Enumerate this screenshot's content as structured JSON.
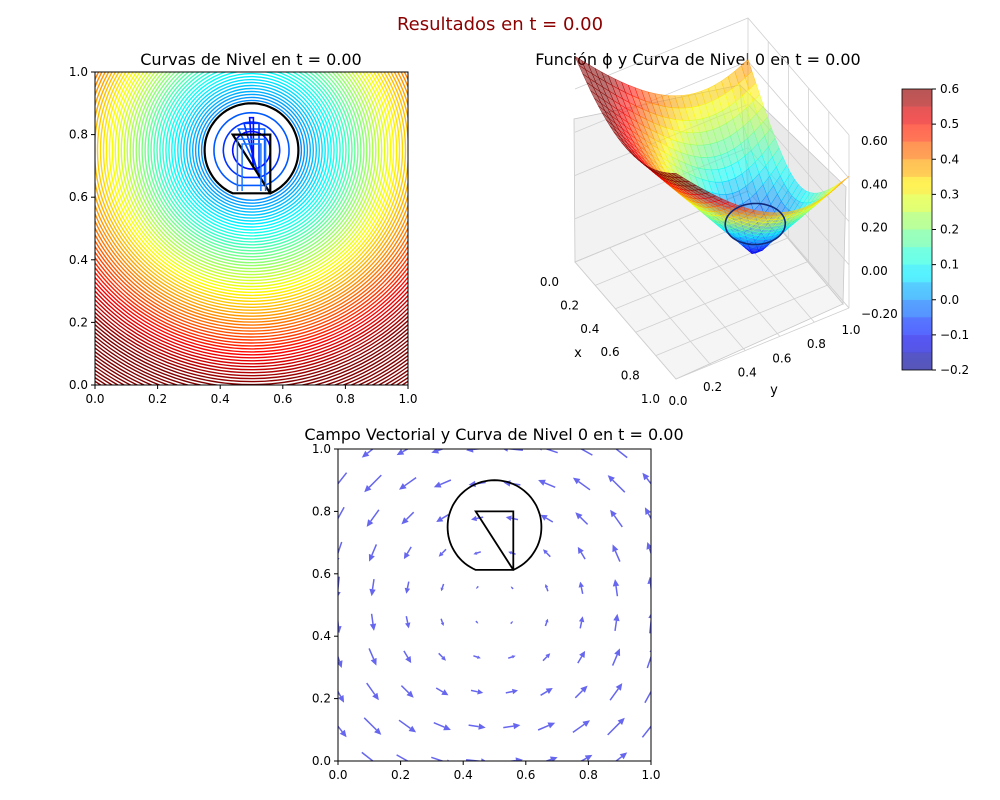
{
  "figure": {
    "suptitle": "Resultados en t = 0.00",
    "suptitle_color": "#8b0000"
  },
  "chart_data": [
    {
      "type": "contour",
      "title": "Curvas de Nivel en t = 0.00",
      "xlim": [
        0,
        1
      ],
      "ylim": [
        0,
        1
      ],
      "xticks": [
        "0.0",
        "0.2",
        "0.4",
        "0.6",
        "0.8",
        "1.0"
      ],
      "yticks": [
        "0.0",
        "0.2",
        "0.4",
        "0.6",
        "0.8",
        "1.0"
      ],
      "colormap": "jet",
      "level_range": [
        -0.2,
        0.6
      ],
      "zero_level_color": "#000000",
      "shape": {
        "circle_center": [
          0.5,
          0.75
        ],
        "circle_radius": 0.15,
        "slot_x": [
          0.44,
          0.56
        ],
        "slot_top": 0.8
      }
    },
    {
      "type": "surface3d",
      "title": "Función ϕ y Curva de Nivel 0 en t = 0.00",
      "xlabel": "x",
      "ylabel": "y",
      "xticks": [
        "0.0",
        "0.2",
        "0.4",
        "0.6",
        "0.8",
        "1.0"
      ],
      "yticks": [
        "0.0",
        "0.2",
        "0.4",
        "0.6",
        "0.8",
        "1.0"
      ],
      "zticks": [
        "0.60",
        "0.40",
        "0.20",
        "0.00",
        "−0.20"
      ],
      "zlim": [
        -0.2,
        0.6
      ],
      "colormap": "jet",
      "colorbar": {
        "ticks": [
          "0.6",
          "0.5",
          "0.4",
          "0.3",
          "0.2",
          "0.1",
          "0.0",
          "−0.1",
          "−0.2"
        ],
        "range": [
          -0.2,
          0.6
        ]
      }
    },
    {
      "type": "quiver",
      "title": "Campo Vectorial y Curva de Nivel 0 en t = 0.00",
      "xlim": [
        0,
        1
      ],
      "ylim": [
        0,
        1
      ],
      "xticks": [
        "0.0",
        "0.2",
        "0.4",
        "0.6",
        "0.8",
        "1.0"
      ],
      "yticks": [
        "0.0",
        "0.2",
        "0.4",
        "0.6",
        "0.8",
        "1.0"
      ],
      "arrow_color": "#6666ee",
      "grid_n": 10,
      "field": "rotation about (0.5, 0.5): u = -(y-0.5), v = x-0.5",
      "zero_level_color": "#000000"
    }
  ]
}
